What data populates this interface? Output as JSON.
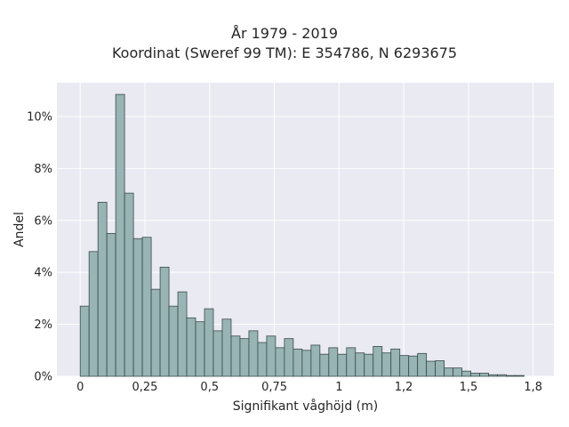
{
  "chart_data": {
    "type": "bar",
    "title": [
      "År 1979 - 2019",
      "Koordinat (Sweref 99 TM): E 354786, N 6293675"
    ],
    "xlabel": "Signifikant våghöjd (m)",
    "ylabel": "Andel",
    "xlim": [
      -0.09,
      1.83
    ],
    "ylim": [
      0,
      11.3
    ],
    "x_ticks": [
      0,
      0.25,
      0.5,
      0.75,
      1,
      1.25,
      1.5,
      1.75
    ],
    "x_tick_labels": [
      "0",
      "0,25",
      "0,5",
      "0,75",
      "1",
      "1,2",
      "1,5",
      "1,8"
    ],
    "y_ticks": [
      0,
      2,
      4,
      6,
      8,
      10
    ],
    "y_tick_labels": [
      "0%",
      "2%",
      "4%",
      "6%",
      "8%",
      "10%"
    ],
    "grid": true,
    "bin_width": 0.0343,
    "bin_start": 0,
    "values": [
      2.7,
      4.8,
      6.7,
      5.5,
      10.85,
      7.05,
      5.3,
      5.35,
      3.35,
      4.2,
      2.7,
      3.25,
      2.25,
      2.1,
      2.6,
      1.75,
      2.2,
      1.55,
      1.45,
      1.75,
      1.3,
      1.55,
      1.1,
      1.45,
      1.05,
      1.0,
      1.2,
      0.85,
      1.1,
      0.85,
      1.1,
      0.9,
      0.85,
      1.15,
      0.9,
      1.05,
      0.8,
      0.78,
      0.88,
      0.58,
      0.6,
      0.32,
      0.32,
      0.2,
      0.12,
      0.12,
      0.06,
      0.06,
      0.03,
      0.03
    ],
    "colors": {
      "bar_fill": "#98b4b4",
      "bar_edge": "#3a4a4a",
      "plot_bg": "#eaeaf2",
      "grid": "#ffffff"
    }
  }
}
